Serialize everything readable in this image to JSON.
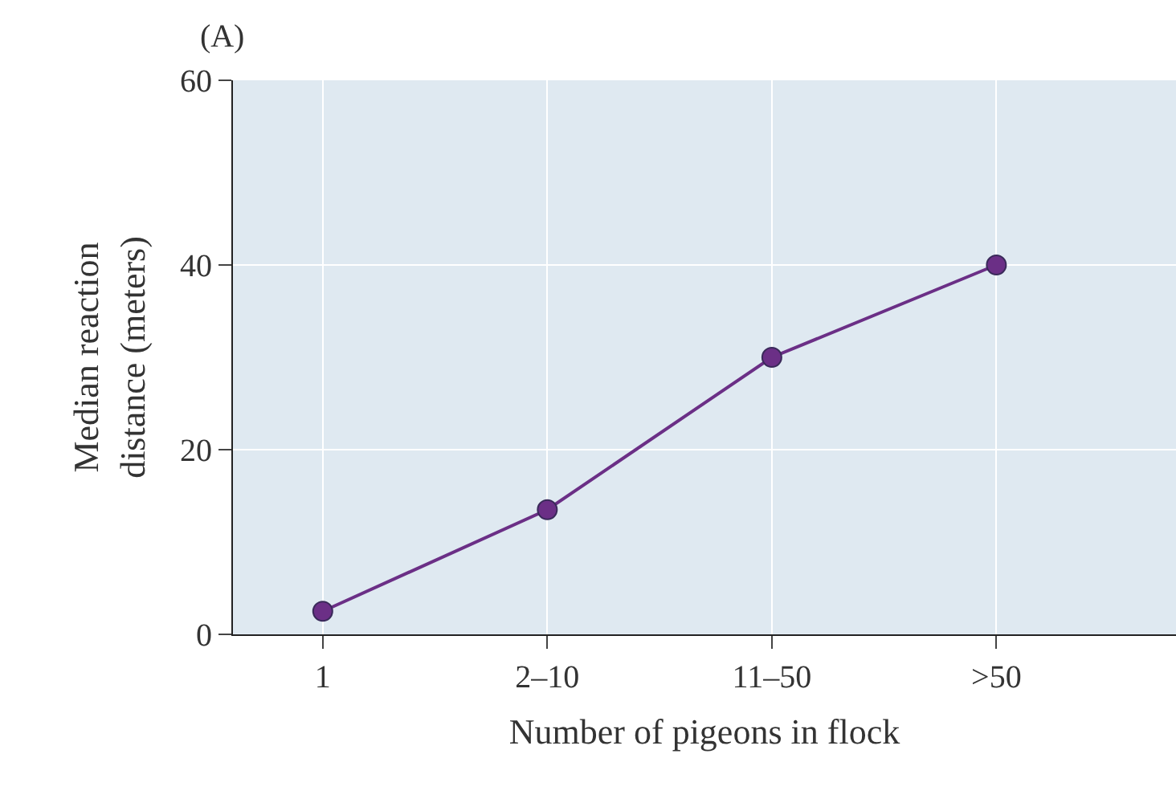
{
  "chart_data": {
    "type": "line",
    "title": "(A)",
    "xlabel": "Number of pigeons in flock",
    "ylabel": "Median reaction\ndistance (meters)",
    "categories": [
      "1",
      "2–10",
      "11–50",
      ">50"
    ],
    "series": [
      {
        "color": "#6b2f86",
        "values": [
          2.5,
          13.5,
          30,
          40
        ]
      }
    ],
    "ylim": [
      0,
      60
    ],
    "yticks": [
      0,
      20,
      40,
      60
    ],
    "grid": true,
    "marker": "circle",
    "line_style": "solid",
    "legend": false
  }
}
